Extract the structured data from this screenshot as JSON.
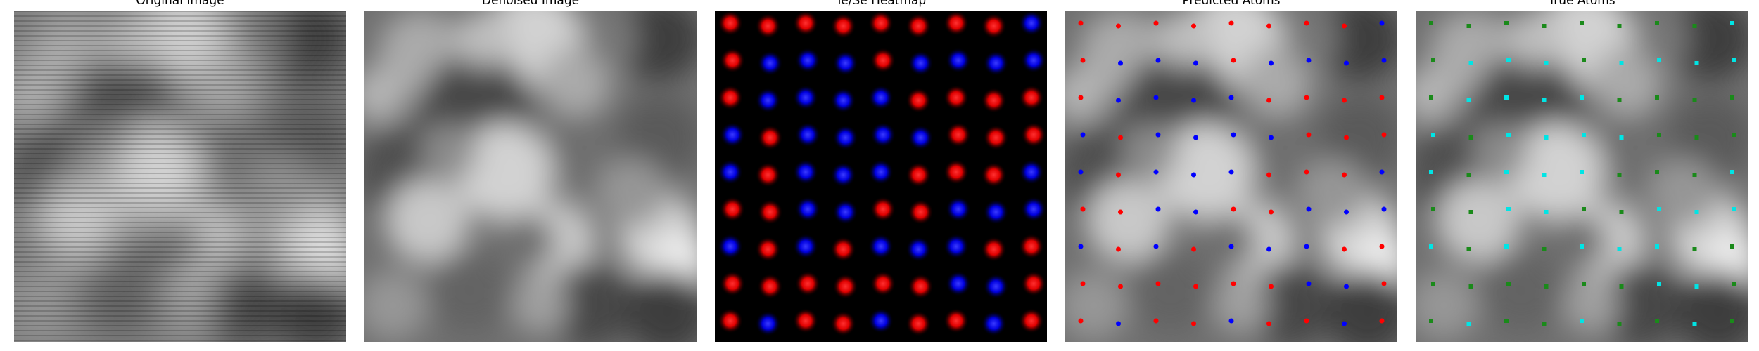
{
  "figure": {
    "panels": [
      {
        "id": "original",
        "title": "Original Image"
      },
      {
        "id": "denoised",
        "title": "Denoised Image"
      },
      {
        "id": "heatmap",
        "title": "Te/Se Heatmap"
      },
      {
        "id": "predicted",
        "title": "Predicted Atoms"
      },
      {
        "id": "true",
        "title": "True Atoms"
      }
    ],
    "colors": {
      "te": "#ff0000",
      "se": "#0000ff",
      "true_a": "#1a8a1a",
      "true_b": "#00e5e5"
    }
  }
}
